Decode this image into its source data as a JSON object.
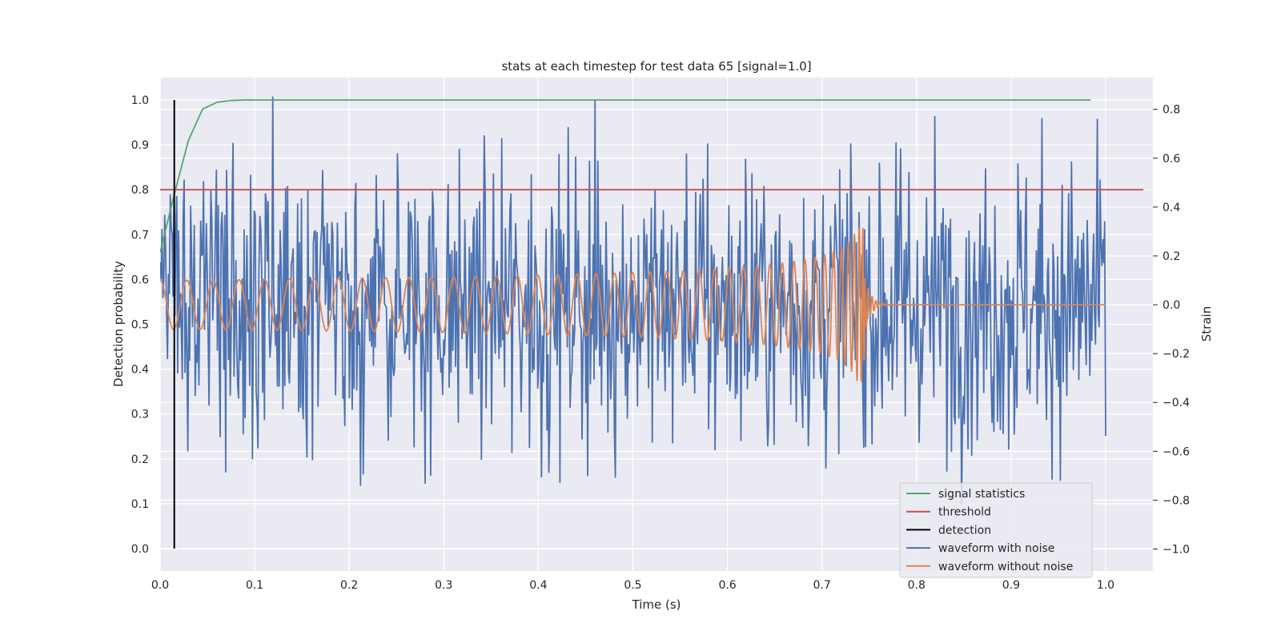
{
  "chart_data": {
    "type": "line",
    "title": "stats at each timestep for test data 65 [signal=1.0]",
    "xlabel": "Time (s)",
    "ylabel": "Detection probability",
    "ylabel_right": "Strain",
    "xlim": [
      0.0,
      1.05
    ],
    "ylim": [
      -0.05,
      1.05
    ],
    "ylim_right": [
      -1.09,
      0.93
    ],
    "xticks": [
      "0.0",
      "0.1",
      "0.2",
      "0.3",
      "0.4",
      "0.5",
      "0.6",
      "0.7",
      "0.8",
      "0.9",
      "1.0"
    ],
    "yticks": [
      "0.0",
      "0.1",
      "0.2",
      "0.3",
      "0.4",
      "0.5",
      "0.6",
      "0.7",
      "0.8",
      "0.9",
      "1.0"
    ],
    "yticks_right": [
      "−1.0",
      "−0.8",
      "−0.6",
      "−0.4",
      "−0.2",
      "0.0",
      "0.2",
      "0.4",
      "0.6",
      "0.8"
    ],
    "grid": true,
    "legend_position": "lower-right",
    "colors": {
      "plot_background": "#eaeaf2",
      "grid": "#ffffff",
      "signal_statistics": "#55a868",
      "threshold": "#c44e52",
      "detection": "#000000",
      "waveform_with_noise": "#4c72b0",
      "waveform_without_noise": "#dd8452"
    },
    "series": [
      {
        "name": "signal statistics",
        "axis": "left",
        "x": [
          0.0,
          0.015,
          0.03,
          0.045,
          0.06,
          0.075,
          0.09,
          0.2,
          0.4,
          0.6,
          0.8,
          0.984
        ],
        "values": [
          0.66,
          0.79,
          0.91,
          0.98,
          0.995,
          0.999,
          1.0,
          1.0,
          1.0,
          1.0,
          1.0,
          1.0
        ]
      },
      {
        "name": "threshold",
        "axis": "left",
        "x": [
          0.0,
          1.04
        ],
        "values": [
          0.8,
          0.8
        ]
      },
      {
        "name": "detection",
        "axis": "left",
        "x": [
          0.015,
          0.015
        ],
        "values": [
          0.0,
          1.0
        ]
      },
      {
        "name": "waveform with noise",
        "axis": "right",
        "style": "noise",
        "x_range": [
          0.0,
          1.0
        ],
        "amplitude": 0.3,
        "min": -1.0,
        "max": 0.85
      },
      {
        "name": "waveform without noise",
        "axis": "right",
        "style": "chirp",
        "x_range": [
          0.0,
          1.0
        ],
        "amplitude_start": 0.1,
        "amplitude_peak": 0.32,
        "merger_time": 0.745,
        "min": -0.4,
        "max": 0.32
      }
    ],
    "legend": [
      "signal statistics",
      "threshold",
      "detection",
      "waveform with noise",
      "waveform without noise"
    ]
  }
}
